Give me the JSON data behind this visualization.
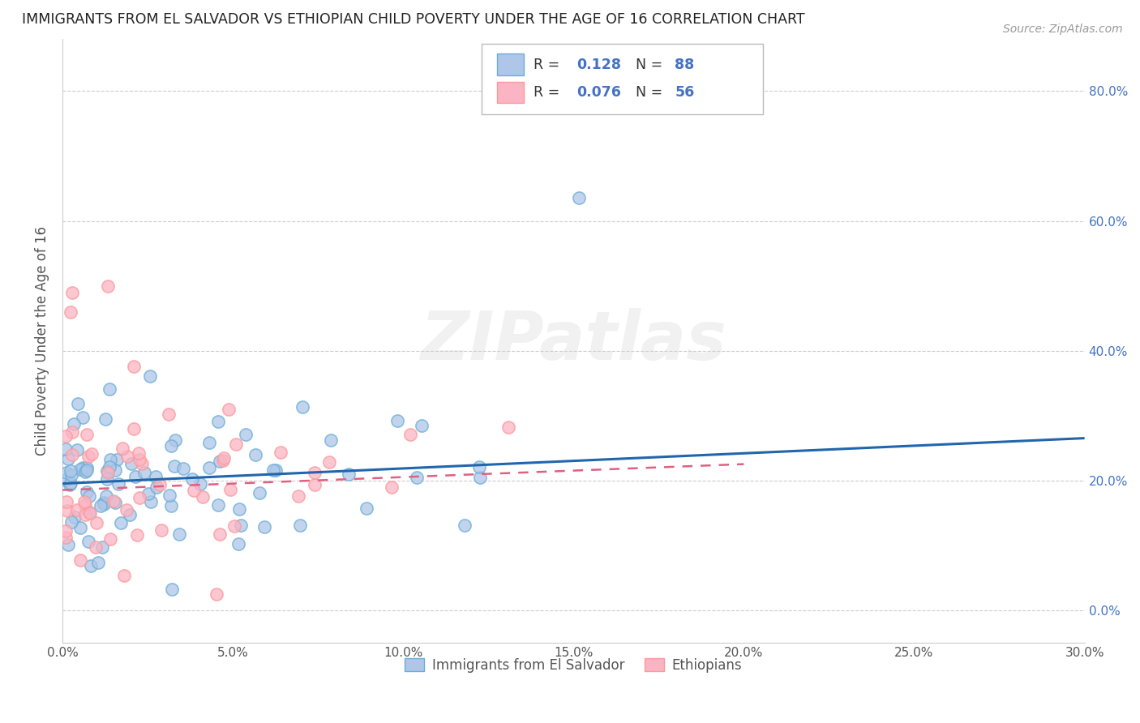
{
  "title": "IMMIGRANTS FROM EL SALVADOR VS ETHIOPIAN CHILD POVERTY UNDER THE AGE OF 16 CORRELATION CHART",
  "source": "Source: ZipAtlas.com",
  "ylabel_label": "Child Poverty Under the Age of 16",
  "legend_label1": "Immigrants from El Salvador",
  "legend_label2": "Ethiopians",
  "xlim": [
    0.0,
    0.3
  ],
  "ylim": [
    -0.05,
    0.88
  ],
  "ytick_vals": [
    0.0,
    0.2,
    0.4,
    0.6,
    0.8
  ],
  "xtick_vals": [
    0.0,
    0.05,
    0.1,
    0.15,
    0.2,
    0.25,
    0.3
  ],
  "blue_fill": "#aec6e8",
  "blue_edge": "#6baed6",
  "pink_fill": "#fbb4c4",
  "pink_edge": "#fb9a99",
  "trend_blue": "#2166ac",
  "trend_pink": "#e06080",
  "right_axis_color": "#4472c4",
  "grid_color": "#cccccc",
  "watermark": "ZIPatlas",
  "legend_r1": "0.128",
  "legend_n1": "88",
  "legend_r2": "0.076",
  "legend_n2": "56",
  "blue_N": 88,
  "pink_N": 56,
  "blue_seed": 42,
  "pink_seed": 99,
  "trend_blue_start_y": 0.195,
  "trend_blue_end_y": 0.265,
  "trend_pink_start_y": 0.185,
  "trend_pink_end_y": 0.225
}
